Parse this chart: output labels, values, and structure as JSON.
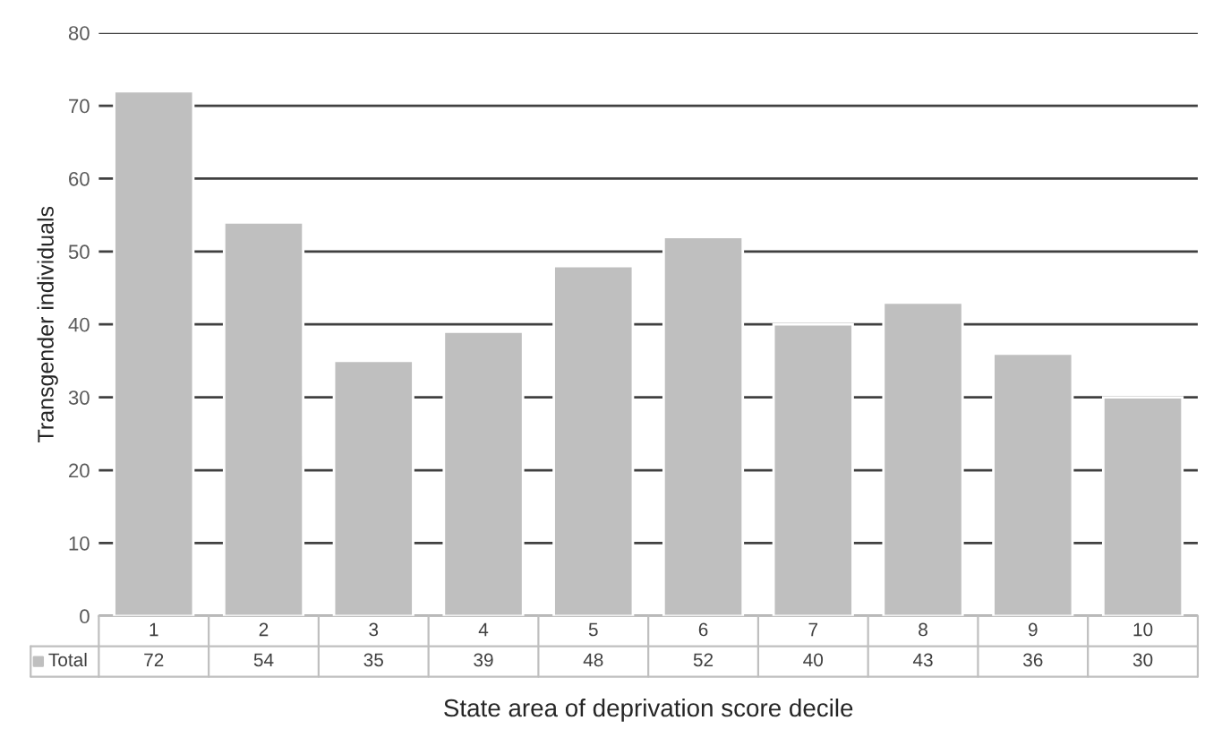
{
  "chart_data": {
    "type": "bar",
    "xlabel": "State area of deprivation score decile",
    "ylabel": "Transgender individuals",
    "categories": [
      "1",
      "2",
      "3",
      "4",
      "5",
      "6",
      "7",
      "8",
      "9",
      "10"
    ],
    "series": [
      {
        "name": "Total",
        "color": "#bfbfbf",
        "values": [
          72,
          54,
          35,
          39,
          48,
          52,
          40,
          43,
          36,
          30
        ]
      }
    ],
    "ylim": [
      0,
      80
    ],
    "yticks": [
      0,
      10,
      20,
      30,
      40,
      50,
      60,
      70,
      80
    ],
    "grid": "y",
    "data_labels": true,
    "legend": "bottom"
  }
}
